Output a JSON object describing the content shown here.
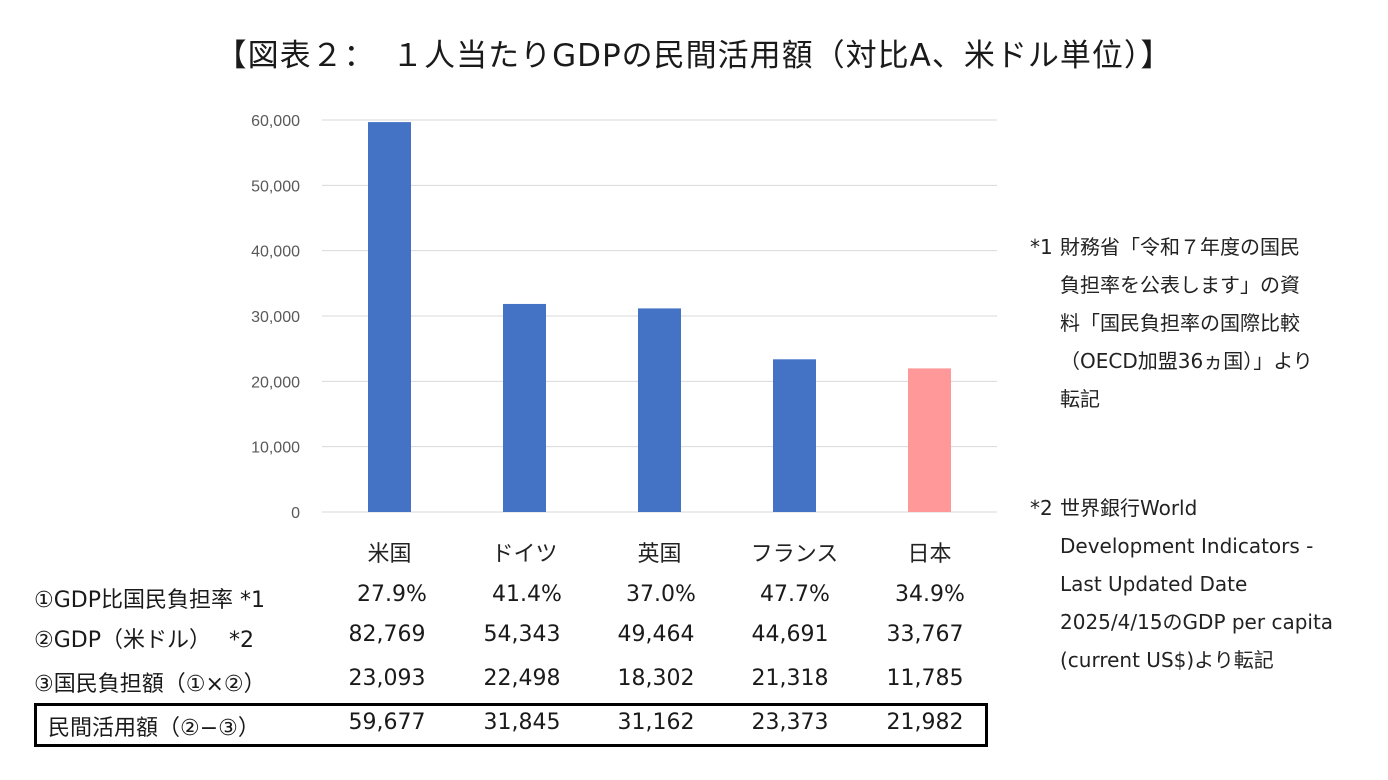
{
  "title": "【図表２：　１人当たりGDPの民間活用額（対比A、米ドル単位）】",
  "chart_data": {
    "type": "bar",
    "categories": [
      "米国",
      "ドイツ",
      "英国",
      "フランス",
      "日本"
    ],
    "values": [
      59677,
      31845,
      31162,
      23373,
      21982
    ],
    "ylim": [
      0,
      60000
    ],
    "yticks": [
      "0",
      "10,000",
      "20,000",
      "30,000",
      "40,000",
      "50,000",
      "60,000"
    ],
    "bar_colors": [
      "#4472c4",
      "#4472c4",
      "#4472c4",
      "#4472c4",
      "#ff9999"
    ],
    "highlight_label_color": "#e03030",
    "grid": true,
    "legend": "none"
  },
  "table": {
    "rows": [
      {
        "label": "①GDP比国民負担率 *1",
        "values": [
          "27.9%",
          "41.4%",
          "37.0%",
          "47.7%",
          "34.9%"
        ]
      },
      {
        "label": "②GDP（米ドル）　 *2",
        "values": [
          "82,769",
          "54,343",
          "49,464",
          "44,691",
          "33,767"
        ]
      },
      {
        "label": "③国民負担額（①×②）",
        "values": [
          "23,093",
          "22,498",
          "18,302",
          "21,318",
          "11,785"
        ]
      },
      {
        "label": "民間活用額（②−③）",
        "values": [
          "59,677",
          "31,845",
          "31,162",
          "23,373",
          "21,982"
        ]
      }
    ]
  },
  "notes": [
    {
      "mark": "*1",
      "text": "財務省「令和７年度の国民\n負担率を公表します」の資\n料「国民負担率の国際比較\n（OECD加盟36ヵ国）」より\n転記"
    },
    {
      "mark": "*2",
      "text": "世界銀行World\nDevelopment Indicators -\nLast Updated Date\n2025/4/15のGDP per capita\n(current US$)より転記"
    }
  ]
}
